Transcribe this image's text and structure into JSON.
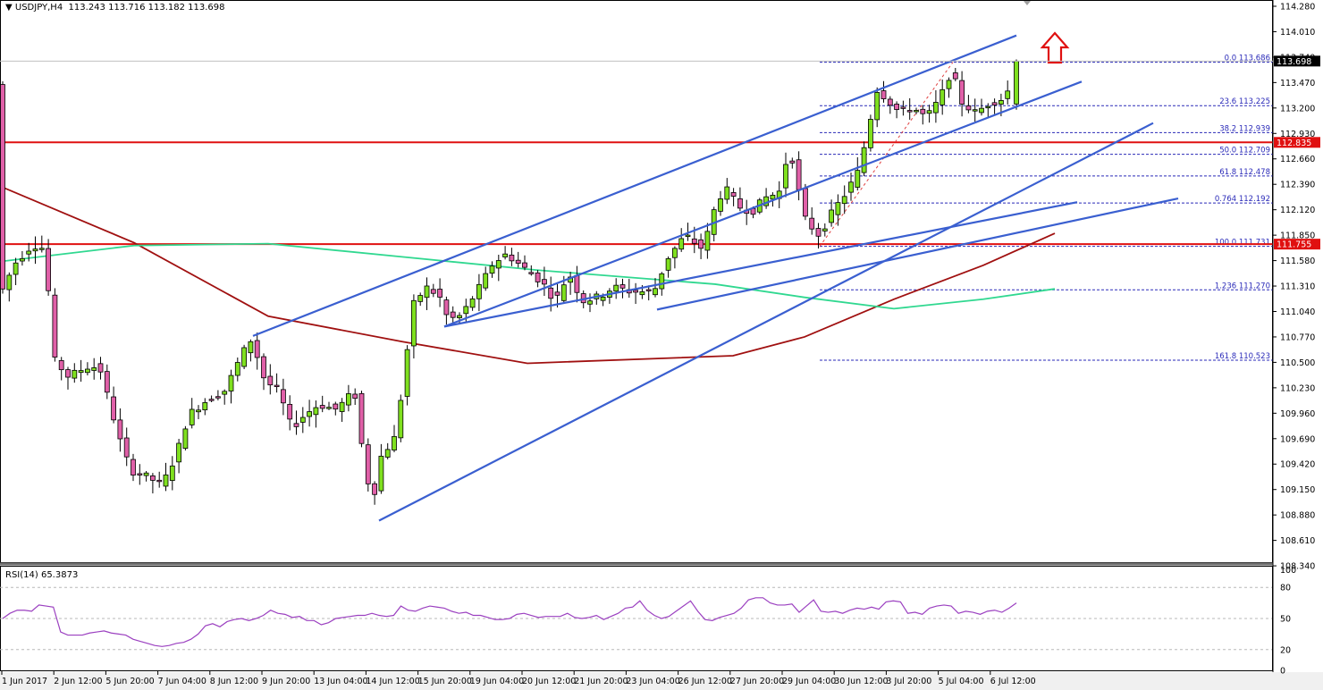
{
  "header": {
    "symbol_label": "USDJPY,H4",
    "ohlc": "113.243 113.716 113.182 113.698",
    "open": "113.243",
    "high": "113.716",
    "low": "113.182",
    "close": "113.698"
  },
  "rsi": {
    "label": "RSI(14) 65.3873",
    "levels": [
      "100",
      "80",
      "50",
      "20",
      "0"
    ]
  },
  "price_axis": {
    "ticks": [
      "114.280",
      "114.010",
      "113.740",
      "113.470",
      "113.200",
      "112.930",
      "112.660",
      "112.390",
      "112.120",
      "111.850",
      "111.580",
      "111.310",
      "111.040",
      "110.770",
      "110.500",
      "110.230",
      "109.960",
      "109.690",
      "109.420",
      "109.150",
      "108.880",
      "108.610",
      "108.340"
    ],
    "current_price_label": "113.698",
    "resistance_label": "112.835",
    "support_label": "111.755"
  },
  "time_axis": {
    "labels": [
      "1 Jun 2017",
      "2 Jun 12:00",
      "5 Jun 20:00",
      "7 Jun 04:00",
      "8 Jun 12:00",
      "9 Jun 20:00",
      "13 Jun 04:00",
      "14 Jun 12:00",
      "15 Jun 20:00",
      "19 Jun 04:00",
      "20 Jun 12:00",
      "21 Jun 20:00",
      "23 Jun 04:00",
      "26 Jun 12:00",
      "27 Jun 20:00",
      "29 Jun 04:00",
      "30 Jun 12:00",
      "3 Jul 20:00",
      "5 Jul 04:00",
      "6 Jul 12:00"
    ]
  },
  "fibonacci": [
    {
      "level": "0.0",
      "price": "113.686"
    },
    {
      "level": "23.6",
      "price": "113.225"
    },
    {
      "level": "38.2",
      "price": "112.939"
    },
    {
      "level": "50.0",
      "price": "112.709"
    },
    {
      "level": "61.8",
      "price": "112.478"
    },
    {
      "level": "0.764",
      "price": "112.192"
    },
    {
      "level": "100.0",
      "price": "111.731"
    },
    {
      "level": "1.236",
      "price": "111.270"
    },
    {
      "level": "161.8",
      "price": "110.523"
    }
  ],
  "colors": {
    "bull_candle": "#7fe01f",
    "bear_candle": "#e060a8",
    "trendline": "#3a5fd0",
    "horizontal_level": "#e01010",
    "ma_fast": "#a01010",
    "ma_slow": "#30d890",
    "fib": "#2a2ab8",
    "rsi_line": "#9b40c0",
    "arrow": "#e01010"
  },
  "chart_data": {
    "type": "candlestick",
    "title": "USDJPY,H4",
    "xlabel": "",
    "ylabel": "",
    "ylim": [
      108.34,
      114.28
    ],
    "grid": false,
    "x_tick_labels": [
      "1 Jun 2017",
      "2 Jun 12:00",
      "5 Jun 20:00",
      "7 Jun 04:00",
      "8 Jun 12:00",
      "9 Jun 20:00",
      "13 Jun 04:00",
      "14 Jun 12:00",
      "15 Jun 20:00",
      "19 Jun 04:00",
      "20 Jun 12:00",
      "21 Jun 20:00",
      "23 Jun 04:00",
      "26 Jun 12:00",
      "27 Jun 20:00",
      "29 Jun 04:00",
      "30 Jun 12:00",
      "3 Jul 20:00",
      "5 Jul 04:00",
      "6 Jul 12:00"
    ],
    "last_bar": {
      "open": 113.243,
      "high": 113.716,
      "low": 113.182,
      "close": 113.698
    },
    "horizontal_levels": [
      {
        "name": "resistance",
        "price": 112.835,
        "color": "#e01010"
      },
      {
        "name": "support",
        "price": 111.755,
        "color": "#e01010"
      }
    ],
    "fibonacci_levels": [
      {
        "level": 0.0,
        "price": 113.686
      },
      {
        "level": 23.6,
        "price": 113.225
      },
      {
        "level": 38.2,
        "price": 112.939
      },
      {
        "level": 50.0,
        "price": 112.709
      },
      {
        "level": 61.8,
        "price": 112.478
      },
      {
        "level": 76.4,
        "price": 112.192
      },
      {
        "level": 100.0,
        "price": 111.731
      },
      {
        "level": 123.6,
        "price": 111.27
      },
      {
        "level": 161.8,
        "price": 110.523
      }
    ],
    "trendlines": [
      {
        "name": "channel-upper",
        "from": {
          "x": 283,
          "price": 110.78
        },
        "to": {
          "x": 1137,
          "price": 113.97
        }
      },
      {
        "name": "channel-lower",
        "from": {
          "x": 497,
          "price": 110.88
        },
        "to": {
          "x": 1210,
          "price": 113.48
        }
      },
      {
        "name": "steep-support",
        "from": {
          "x": 424,
          "price": 108.82
        },
        "to": {
          "x": 1290,
          "price": 113.04
        }
      },
      {
        "name": "mid-support",
        "from": {
          "x": 735,
          "price": 111.06
        },
        "to": {
          "x": 1318,
          "price": 112.24
        }
      },
      {
        "name": "shallow-support",
        "from": {
          "x": 497,
          "price": 110.88
        },
        "to": {
          "x": 1205,
          "price": 112.2
        }
      }
    ],
    "moving_averages": [
      {
        "name": "ma-red",
        "color": "#a01010",
        "approx_points": [
          [
            0,
            112.37
          ],
          [
            150,
            111.77
          ],
          [
            300,
            110.99
          ],
          [
            450,
            110.72
          ],
          [
            590,
            110.49
          ],
          [
            820,
            110.57
          ],
          [
            900,
            110.77
          ],
          [
            1000,
            111.17
          ],
          [
            1100,
            111.53
          ],
          [
            1180,
            111.87
          ]
        ]
      },
      {
        "name": "ma-green",
        "color": "#30d890",
        "approx_points": [
          [
            0,
            111.57
          ],
          [
            150,
            111.74
          ],
          [
            300,
            111.76
          ],
          [
            450,
            111.62
          ],
          [
            600,
            111.48
          ],
          [
            800,
            111.33
          ],
          [
            900,
            111.19
          ],
          [
            1000,
            111.07
          ],
          [
            1100,
            111.17
          ],
          [
            1180,
            111.28
          ]
        ]
      }
    ],
    "rsi": {
      "period": 14,
      "value": 65.3873,
      "levels": [
        80,
        50,
        20
      ],
      "ylim": [
        0,
        100
      ],
      "approx_series": [
        50,
        55,
        58,
        58,
        57,
        63,
        62,
        61,
        37,
        34,
        34,
        34,
        36,
        37,
        38,
        36,
        35,
        34,
        30,
        28,
        26,
        24,
        23,
        24,
        26,
        27,
        30,
        35,
        43,
        45,
        42,
        47,
        49,
        50,
        48,
        50,
        53,
        58,
        55,
        54,
        51,
        52,
        48,
        48,
        44,
        46,
        50,
        51,
        52,
        53,
        53,
        55,
        53,
        52,
        53,
        62,
        58,
        57,
        60,
        62,
        61,
        60,
        57,
        55,
        56,
        53,
        53,
        51,
        49,
        49,
        50,
        54,
        55,
        53,
        51,
        52,
        52,
        52,
        55,
        51,
        50,
        51,
        53,
        49,
        52,
        55,
        60,
        61,
        67,
        58,
        53,
        50,
        52,
        57,
        62,
        67,
        57,
        49,
        48,
        51,
        53,
        55,
        60,
        68,
        70,
        70,
        65,
        63,
        63,
        64,
        56,
        62,
        68,
        57,
        56,
        57,
        55,
        58,
        60,
        59,
        61,
        59,
        66,
        67,
        66,
        55,
        56,
        54,
        60,
        62,
        63,
        62,
        55,
        57,
        56,
        54,
        57,
        58,
        56,
        60,
        65
      ]
    },
    "annotations": [
      {
        "type": "up-arrow",
        "color": "#e01010",
        "x": 1180,
        "price": 113.83
      }
    ]
  }
}
